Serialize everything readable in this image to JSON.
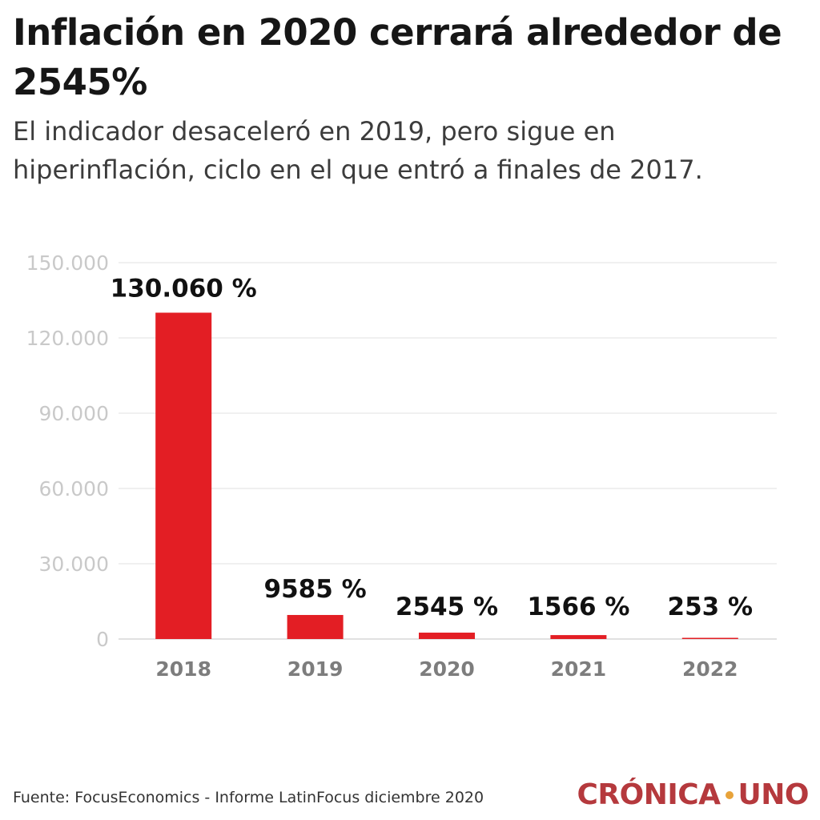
{
  "header": {
    "title": "Inflación en 2020 cerrará alrededor de 2545%",
    "subtitle": "El indicador desaceleró en 2019, pero sigue en hiperinflación, ciclo en el que entró a finales de 2017."
  },
  "footer": {
    "source": "Fuente: FocusEconomics - Informe LatinFocus diciembre 2020",
    "logo_left": "CRÓNICA",
    "logo_right": "UNO"
  },
  "colors": {
    "bar": "#e31e24",
    "logo": "#b5393d",
    "logo_dot": "#e8a33a"
  },
  "chart_data": {
    "type": "bar",
    "categories": [
      "2018",
      "2019",
      "2020",
      "2021",
      "2022"
    ],
    "values": [
      130060,
      9585,
      2545,
      1566,
      253
    ],
    "data_labels": [
      "130.060 %",
      "9585 %",
      "2545 %",
      "1566 %",
      "253 %"
    ],
    "ylim": [
      0,
      150000
    ],
    "yticks": [
      0,
      30000,
      60000,
      90000,
      120000,
      150000
    ],
    "ytick_labels": [
      "0",
      "30.000",
      "60.000",
      "90.000",
      "120.000",
      "150.000"
    ],
    "grid": true,
    "xlabel": "",
    "ylabel": ""
  }
}
